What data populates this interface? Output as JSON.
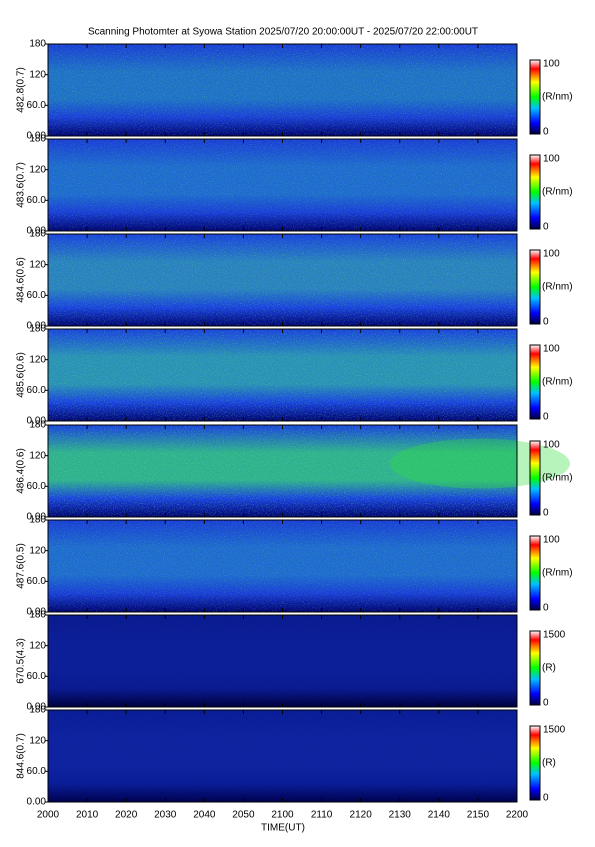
{
  "chart_data": {
    "type": "heatmap",
    "title": "Scanning Photomter at Syowa Station 2025/07/20 20:00:00UT - 2025/07/20 22:00:00UT",
    "xlabel": "TIME(UT)",
    "xticks": [
      "2000",
      "2010",
      "2020",
      "2030",
      "2040",
      "2050",
      "2100",
      "2110",
      "2120",
      "2130",
      "2140",
      "2150",
      "2200"
    ],
    "panels": [
      {
        "ylabel": "482.8(0.7)",
        "ylim": [
          0,
          180
        ],
        "yticks": [
          {
            "value": 0,
            "label": "0.00"
          },
          {
            "value": 60,
            "label": "60.0"
          },
          120,
          180
        ],
        "clim": [
          0,
          100
        ],
        "cticks": [
          0,
          100
        ],
        "clabel": "(R/nm)"
      },
      {
        "ylabel": "483.6(0.7)",
        "ylim": [
          0,
          180
        ],
        "yticks": [
          {
            "value": 0,
            "label": "0.00"
          },
          {
            "value": 60,
            "label": "60.0"
          },
          120,
          180
        ],
        "clim": [
          0,
          100
        ],
        "cticks": [
          0,
          100
        ],
        "clabel": "(R/nm)"
      },
      {
        "ylabel": "484.6(0.6)",
        "ylim": [
          0,
          180
        ],
        "yticks": [
          {
            "value": 0,
            "label": "0.00"
          },
          {
            "value": 60,
            "label": "60.0"
          },
          120,
          180
        ],
        "clim": [
          0,
          100
        ],
        "cticks": [
          0,
          100
        ],
        "clabel": "(R/nm)"
      },
      {
        "ylabel": "485.6(0.6)",
        "ylim": [
          0,
          180
        ],
        "yticks": [
          {
            "value": 0,
            "label": "0.00"
          },
          {
            "value": 60,
            "label": "60.0"
          },
          120,
          180
        ],
        "clim": [
          0,
          100
        ],
        "cticks": [
          0,
          100
        ],
        "clabel": "(R/nm)"
      },
      {
        "ylabel": "486.4(0.6)",
        "ylim": [
          0,
          180
        ],
        "yticks": [
          {
            "value": 0,
            "label": "0.00"
          },
          {
            "value": 60,
            "label": "60.0"
          },
          120,
          180
        ],
        "clim": [
          0,
          100
        ],
        "cticks": [
          0,
          100
        ],
        "clabel": "(R/nm)"
      },
      {
        "ylabel": "487.6(0.5)",
        "ylim": [
          0,
          180
        ],
        "yticks": [
          {
            "value": 0,
            "label": "0.00"
          },
          {
            "value": 60,
            "label": "60.0"
          },
          120,
          180
        ],
        "clim": [
          0,
          100
        ],
        "cticks": [
          0,
          100
        ],
        "clabel": "(R/nm)"
      },
      {
        "ylabel": "670.5(4.3)",
        "ylim": [
          0,
          180
        ],
        "yticks": [
          {
            "value": 0,
            "label": "0.00"
          },
          {
            "value": 60,
            "label": "60.0"
          },
          120,
          180
        ],
        "clim": [
          0,
          1500
        ],
        "cticks": [
          0,
          1500
        ],
        "clabel": "(R)"
      },
      {
        "ylabel": "844.6(0.7)",
        "ylim": [
          0,
          180
        ],
        "yticks": [
          {
            "value": 0,
            "label": "0.00"
          },
          {
            "value": 60,
            "label": "60.0"
          },
          120,
          180
        ],
        "clim": [
          0,
          1500
        ],
        "cticks": [
          0,
          1500
        ],
        "clabel": "(R)"
      }
    ]
  }
}
